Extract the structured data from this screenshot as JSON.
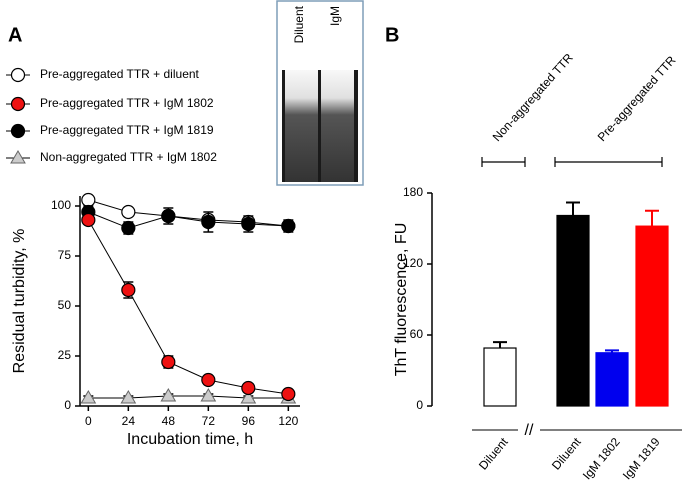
{
  "chart_data": [
    {
      "type": "line",
      "panel_label": "A",
      "x_label": "Incubation time, h",
      "y_label": "Residual turbidity, %",
      "x": [
        0,
        24,
        48,
        72,
        96,
        120
      ],
      "xlim": [
        -5,
        127
      ],
      "xticks": [
        0,
        24,
        48,
        72,
        96,
        120
      ],
      "ylim": [
        0,
        105
      ],
      "yticks": [
        0,
        25,
        50,
        75,
        100
      ],
      "legend": "upper-left",
      "inset_labels": [
        "Diluent",
        "IgM"
      ],
      "series": [
        {
          "name": "Pre-aggregated TTR + diluent",
          "color": "#ffffff",
          "marker": "circle",
          "values": [
            103,
            97,
            95,
            93,
            92,
            90
          ],
          "errors": [
            2,
            2,
            2,
            2,
            2,
            2
          ]
        },
        {
          "name": "Pre-aggregated TTR + IgM 1802",
          "color": "#ee1111",
          "marker": "circle",
          "values": [
            93,
            58,
            22,
            13,
            9,
            6
          ],
          "errors": [
            2,
            4,
            3,
            2,
            2,
            2
          ]
        },
        {
          "name": "Pre-aggregated TTR + IgM 1819",
          "color": "#000000",
          "marker": "circle",
          "values": [
            97,
            89,
            95,
            92,
            91,
            90
          ],
          "errors": [
            3,
            3,
            4,
            5,
            4,
            3
          ]
        },
        {
          "name": "Non-aggregated TTR + IgM 1802",
          "color": "#cccccc",
          "marker": "triangle",
          "values": [
            4,
            4,
            5,
            5,
            4,
            4
          ],
          "errors": [
            1,
            1,
            1,
            1,
            1,
            1
          ]
        }
      ]
    },
    {
      "type": "bar",
      "panel_label": "B",
      "y_label": "ThT fluorescence, FU",
      "categories": [
        "Diluent",
        "Diluent",
        "IgM 1802",
        "IgM 1819"
      ],
      "values": [
        49,
        161,
        45,
        152
      ],
      "errors": [
        5,
        11,
        2,
        13
      ],
      "colors": [
        "#ffffff",
        "#000000",
        "#0000ee",
        "#ff0000"
      ],
      "ylim": [
        0,
        180
      ],
      "yticks": [
        0,
        60,
        120,
        180
      ],
      "group_labels": [
        "Non-aggregated TTR",
        "Pre-aggregated TTR"
      ],
      "axis_break": "//"
    }
  ]
}
